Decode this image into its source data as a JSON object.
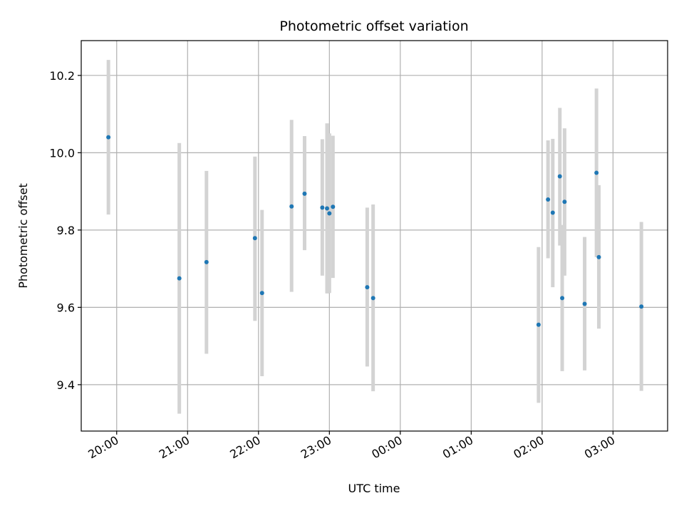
{
  "chart_data": {
    "type": "scatter",
    "title": "Photometric offset variation",
    "xlabel": "UTC time",
    "ylabel": "Photometric offset",
    "x_unit": "hours since 00:00 UTC",
    "xlim": [
      -4.5,
      3.77
    ],
    "ylim": [
      9.28,
      10.29
    ],
    "grid": true,
    "x_ticks": [
      {
        "value": -4,
        "label": "20:00"
      },
      {
        "value": -3,
        "label": "21:00"
      },
      {
        "value": -2,
        "label": "22:00"
      },
      {
        "value": -1,
        "label": "23:00"
      },
      {
        "value": 0,
        "label": "00:00"
      },
      {
        "value": 1,
        "label": "01:00"
      },
      {
        "value": 2,
        "label": "02:00"
      },
      {
        "value": 3,
        "label": "03:00"
      }
    ],
    "y_ticks": [
      {
        "value": 9.4,
        "label": "9.4"
      },
      {
        "value": 9.6,
        "label": "9.6"
      },
      {
        "value": 9.8,
        "label": "9.8"
      },
      {
        "value": 10.0,
        "label": "10.0"
      },
      {
        "value": 10.2,
        "label": "10.2"
      }
    ],
    "colors": {
      "points": "#1f77b4",
      "errorbars": "#d3d3d3",
      "grid": "#b0b0b0"
    },
    "points": [
      {
        "x": "19:53",
        "y": 10.04,
        "err_low": 9.84,
        "err_high": 10.24
      },
      {
        "x": "20:53",
        "y": 9.675,
        "err_low": 9.325,
        "err_high": 10.025
      },
      {
        "x": "21:16",
        "y": 9.717,
        "err_low": 9.48,
        "err_high": 9.953
      },
      {
        "x": "21:57",
        "y": 9.779,
        "err_low": 9.565,
        "err_high": 9.99
      },
      {
        "x": "22:03",
        "y": 9.637,
        "err_low": 9.422,
        "err_high": 9.852
      },
      {
        "x": "22:28",
        "y": 9.861,
        "err_low": 9.64,
        "err_high": 10.085
      },
      {
        "x": "22:39",
        "y": 9.894,
        "err_low": 9.748,
        "err_high": 10.043
      },
      {
        "x": "22:54",
        "y": 9.858,
        "err_low": 9.682,
        "err_high": 10.035
      },
      {
        "x": "22:58",
        "y": 9.856,
        "err_low": 9.636,
        "err_high": 10.076
      },
      {
        "x": "23:00",
        "y": 9.843,
        "err_low": 9.637,
        "err_high": 10.05
      },
      {
        "x": "23:03",
        "y": 9.86,
        "err_low": 9.676,
        "err_high": 10.044
      },
      {
        "x": "23:32",
        "y": 9.652,
        "err_low": 9.447,
        "err_high": 9.858
      },
      {
        "x": "23:37",
        "y": 9.624,
        "err_low": 9.383,
        "err_high": 9.866
      },
      {
        "x": "01:57",
        "y": 9.555,
        "err_low": 9.353,
        "err_high": 9.756
      },
      {
        "x": "02:05",
        "y": 9.879,
        "err_low": 9.727,
        "err_high": 10.032
      },
      {
        "x": "02:09",
        "y": 9.845,
        "err_low": 9.652,
        "err_high": 10.036
      },
      {
        "x": "02:15",
        "y": 9.939,
        "err_low": 9.76,
        "err_high": 10.116
      },
      {
        "x": "02:17",
        "y": 9.624,
        "err_low": 9.435,
        "err_high": 9.813
      },
      {
        "x": "02:19",
        "y": 9.873,
        "err_low": 9.682,
        "err_high": 10.063
      },
      {
        "x": "02:36",
        "y": 9.609,
        "err_low": 9.437,
        "err_high": 9.782
      },
      {
        "x": "02:46",
        "y": 9.948,
        "err_low": 9.73,
        "err_high": 10.166
      },
      {
        "x": "02:48",
        "y": 9.73,
        "err_low": 9.545,
        "err_high": 9.916
      },
      {
        "x": "03:24",
        "y": 9.602,
        "err_low": 9.384,
        "err_high": 9.821
      }
    ]
  }
}
